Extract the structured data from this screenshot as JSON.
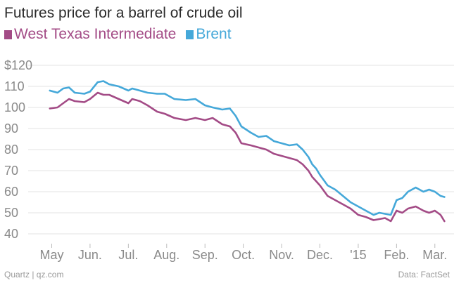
{
  "chart_data": {
    "type": "line",
    "title": "Futures price for a barrel of crude oil",
    "xlabel": "",
    "ylabel": "",
    "ylim": [
      35,
      125
    ],
    "y_ticks": [
      "40",
      "50",
      "60",
      "70",
      "80",
      "90",
      "100",
      "110",
      "$120"
    ],
    "y_tick_values": [
      40,
      50,
      60,
      70,
      80,
      90,
      100,
      110,
      120
    ],
    "x_ticks": [
      "May",
      "Jun.",
      "Jul.",
      "Aug.",
      "Sep.",
      "Oct.",
      "Nov.",
      "Dec.",
      "'15",
      "Feb.",
      "Mar."
    ],
    "x_tick_values": [
      1.0,
      2.0,
      3.0,
      4.0,
      5.0,
      6.0,
      7.0,
      8.0,
      9.0,
      10.0,
      11.0
    ],
    "xlim": [
      0.55,
      11.5
    ],
    "grid": true,
    "legend_position": "top-left",
    "series": [
      {
        "name": "West Texas Intermediate",
        "color": "#a34b86",
        "x": [
          0.95,
          1.15,
          1.3,
          1.45,
          1.6,
          1.85,
          2.0,
          2.2,
          2.35,
          2.5,
          2.75,
          3.0,
          3.1,
          3.3,
          3.5,
          3.75,
          3.95,
          4.2,
          4.5,
          4.75,
          5.0,
          5.2,
          5.45,
          5.65,
          5.8,
          5.95,
          6.2,
          6.4,
          6.6,
          6.8,
          7.0,
          7.2,
          7.4,
          7.55,
          7.7,
          7.8,
          7.9,
          8.0,
          8.2,
          8.4,
          8.6,
          8.8,
          9.0,
          9.2,
          9.4,
          9.55,
          9.7,
          9.85,
          10.0,
          10.15,
          10.3,
          10.5,
          10.7,
          10.85,
          11.0,
          11.15,
          11.25
        ],
        "values": [
          99.5,
          100.0,
          102.0,
          104.0,
          103.0,
          102.5,
          104.0,
          107.0,
          106.0,
          106.0,
          104.0,
          102.0,
          104.0,
          103.0,
          101.0,
          98.0,
          97.0,
          95.0,
          94.0,
          95.0,
          94.0,
          95.0,
          92.0,
          91.0,
          88.0,
          83.0,
          82.0,
          81.0,
          80.0,
          78.0,
          77.0,
          76.0,
          75.0,
          73.0,
          70.0,
          67.0,
          65.0,
          63.0,
          58.0,
          56.0,
          54.0,
          52.0,
          49.0,
          48.0,
          46.5,
          47.0,
          47.5,
          46.0,
          51.0,
          50.0,
          52.0,
          53.0,
          51.0,
          50.0,
          51.0,
          49.0,
          46.0
        ]
      },
      {
        "name": "Brent",
        "color": "#45a8d9",
        "x": [
          0.95,
          1.15,
          1.3,
          1.45,
          1.6,
          1.85,
          2.0,
          2.2,
          2.35,
          2.5,
          2.75,
          3.0,
          3.1,
          3.3,
          3.5,
          3.75,
          3.95,
          4.2,
          4.5,
          4.75,
          5.0,
          5.2,
          5.45,
          5.65,
          5.8,
          5.95,
          6.2,
          6.4,
          6.6,
          6.8,
          7.0,
          7.2,
          7.4,
          7.55,
          7.7,
          7.8,
          7.9,
          8.0,
          8.2,
          8.4,
          8.6,
          8.8,
          9.0,
          9.2,
          9.4,
          9.55,
          9.7,
          9.85,
          10.0,
          10.15,
          10.3,
          10.5,
          10.7,
          10.85,
          11.0,
          11.15,
          11.25
        ],
        "values": [
          108.0,
          107.0,
          109.0,
          109.5,
          107.0,
          106.5,
          107.5,
          112.0,
          112.5,
          111.0,
          110.0,
          108.0,
          109.0,
          108.0,
          107.0,
          106.5,
          106.5,
          104.0,
          103.5,
          104.0,
          101.0,
          100.0,
          99.0,
          99.5,
          96.0,
          91.0,
          88.0,
          86.0,
          86.5,
          84.0,
          83.0,
          82.0,
          82.5,
          80.0,
          76.5,
          73.0,
          71.0,
          68.0,
          63.0,
          61.0,
          58.0,
          55.0,
          53.0,
          51.0,
          49.0,
          50.0,
          49.5,
          49.0,
          56.0,
          57.0,
          60.0,
          62.0,
          60.0,
          61.0,
          60.0,
          58.0,
          57.5
        ]
      }
    ]
  },
  "footer": {
    "source_left": "Quartz | qz.com",
    "source_right": "Data: FactSet"
  }
}
